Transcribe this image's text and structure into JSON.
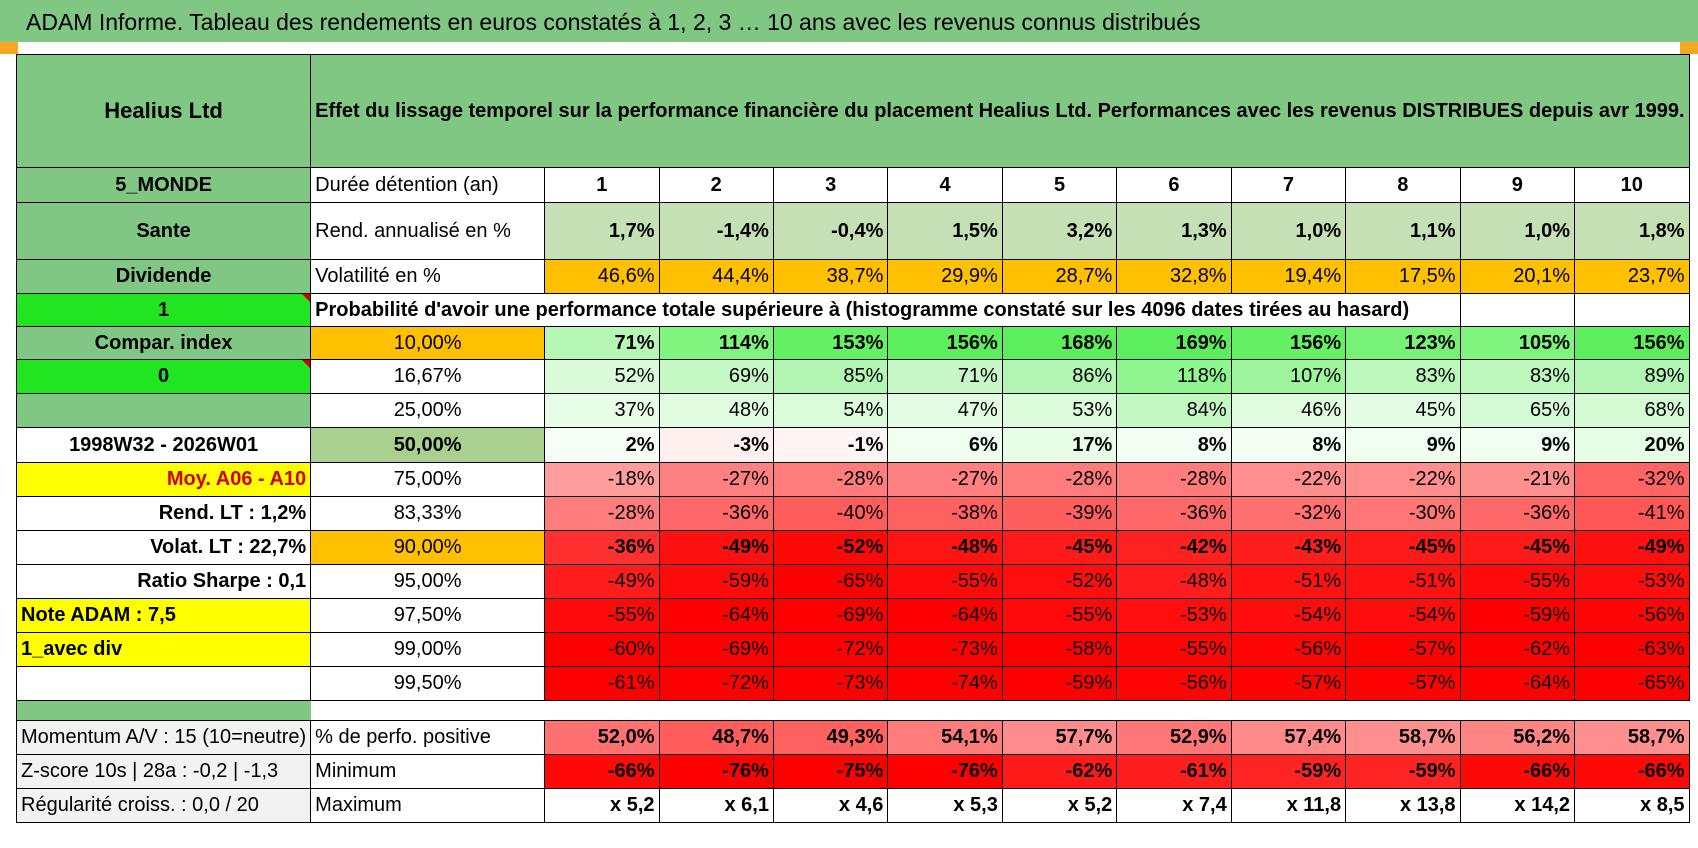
{
  "header": {
    "title": "ADAM Informe. Tableau des rendements en euros constatés à 1, 2, 3 … 10 ans avec les revenus connus distribués"
  },
  "left": {
    "fund_name": "Healius Ltd",
    "zone": "5_MONDE",
    "sector": "Sante",
    "type": "Dividende",
    "flag1": "1",
    "compar": "Compar. index",
    "flag2": "0",
    "period": "1998W32 - 2026W01",
    "moy": "Moy. A06 - A10",
    "rend_lt": "Rend. LT :    1,2%",
    "volat_lt": "Volat. LT :    22,7%",
    "sharpe": "Ratio Sharpe :    0,1",
    "note": "Note ADAM : 7,5",
    "avec_div": "1_avec div",
    "momentum": "Momentum A/V : 15 (10=neutre)",
    "zscore": "Z-score 10s | 28a : -0,2 | -1,3",
    "regularite": "Régularité croiss. : 0,0 / 20"
  },
  "main": {
    "subtitle": "Effet du lissage temporel sur la performance financière du placement Healius Ltd. Performances avec les revenus DISTRIBUES depuis avr 1999.",
    "duree_label": "Durée détention (an)",
    "years": [
      "1",
      "2",
      "3",
      "4",
      "5",
      "6",
      "7",
      "8",
      "9",
      "10"
    ],
    "rend_label": "Rend. annualisé en %",
    "rend": [
      "1,7%",
      "-1,4%",
      "-0,4%",
      "1,5%",
      "3,2%",
      "1,3%",
      "1,0%",
      "1,1%",
      "1,0%",
      "1,8%"
    ],
    "vol_label": "Volatilité en %",
    "vol": [
      "46,6%",
      "44,4%",
      "38,7%",
      "29,9%",
      "28,7%",
      "32,8%",
      "19,4%",
      "17,5%",
      "20,1%",
      "23,7%"
    ],
    "prob_label": "Probabilité d'avoir une performance totale supérieure à (histogramme constaté sur les 4096 dates tirées au hasard)",
    "quantiles": [
      {
        "pct": "10,00%",
        "values": [
          "71%",
          "114%",
          "153%",
          "156%",
          "168%",
          "169%",
          "156%",
          "123%",
          "105%",
          "156%"
        ]
      },
      {
        "pct": "16,67%",
        "values": [
          "52%",
          "69%",
          "85%",
          "71%",
          "86%",
          "118%",
          "107%",
          "83%",
          "83%",
          "89%"
        ]
      },
      {
        "pct": "25,00%",
        "values": [
          "37%",
          "48%",
          "54%",
          "47%",
          "53%",
          "84%",
          "46%",
          "45%",
          "65%",
          "68%"
        ]
      },
      {
        "pct": "50,00%",
        "values": [
          "2%",
          "-3%",
          "-1%",
          "6%",
          "17%",
          "8%",
          "8%",
          "9%",
          "9%",
          "20%"
        ]
      },
      {
        "pct": "75,00%",
        "values": [
          "-18%",
          "-27%",
          "-28%",
          "-27%",
          "-28%",
          "-28%",
          "-22%",
          "-22%",
          "-21%",
          "-32%"
        ]
      },
      {
        "pct": "83,33%",
        "values": [
          "-28%",
          "-36%",
          "-40%",
          "-38%",
          "-39%",
          "-36%",
          "-32%",
          "-30%",
          "-36%",
          "-41%"
        ]
      },
      {
        "pct": "90,00%",
        "values": [
          "-36%",
          "-49%",
          "-52%",
          "-48%",
          "-45%",
          "-42%",
          "-43%",
          "-45%",
          "-45%",
          "-49%"
        ]
      },
      {
        "pct": "95,00%",
        "values": [
          "-49%",
          "-59%",
          "-65%",
          "-55%",
          "-52%",
          "-48%",
          "-51%",
          "-51%",
          "-55%",
          "-53%"
        ]
      },
      {
        "pct": "97,50%",
        "values": [
          "-55%",
          "-64%",
          "-69%",
          "-64%",
          "-55%",
          "-53%",
          "-54%",
          "-54%",
          "-59%",
          "-56%"
        ]
      },
      {
        "pct": "99,00%",
        "values": [
          "-60%",
          "-69%",
          "-72%",
          "-73%",
          "-58%",
          "-55%",
          "-56%",
          "-57%",
          "-62%",
          "-63%"
        ]
      },
      {
        "pct": "99,50%",
        "values": [
          "-61%",
          "-72%",
          "-73%",
          "-74%",
          "-59%",
          "-56%",
          "-57%",
          "-57%",
          "-64%",
          "-65%"
        ]
      }
    ],
    "pos_label": "% de perfo. positive",
    "pos": [
      "52,0%",
      "48,7%",
      "49,3%",
      "54,1%",
      "57,7%",
      "52,9%",
      "57,4%",
      "58,7%",
      "56,2%",
      "58,7%"
    ],
    "min_label": "Minimum",
    "min": [
      "-66%",
      "-76%",
      "-75%",
      "-76%",
      "-62%",
      "-61%",
      "-59%",
      "-59%",
      "-66%",
      "-66%"
    ],
    "max_label": "Maximum",
    "max": [
      "x 5,2",
      "x 6,1",
      "x 4,6",
      "x 5,3",
      "x 5,2",
      "x 7,4",
      "x 11,8",
      "x 13,8",
      "x 14,2",
      "x 8,5"
    ]
  },
  "colors": {
    "header_green": "#81c784",
    "bright_green": "#21e521",
    "yellow": "#ffff00",
    "orange": "#ffc000",
    "rend_bg": "#c5e0b4",
    "quantile_rows": [
      [
        "#b6f7b6",
        "#7ff57f",
        "#66f066",
        "#5cee5c",
        "#5cee5c",
        "#5cee5c",
        "#66f066",
        "#77f277",
        "#7ff57f",
        "#5cee5c"
      ],
      [
        "#dafbda",
        "#c5f8c5",
        "#b3f6b3",
        "#c8f8c8",
        "#b3f6b3",
        "#8ff58f",
        "#9ef59e",
        "#bcf7bc",
        "#bcf7bc",
        "#b3f6b3"
      ],
      [
        "#e8fde8",
        "#e1fce1",
        "#dbfbdb",
        "#e3fce3",
        "#dcfcdc",
        "#c2f8c2",
        "#e1fce1",
        "#e3fce3",
        "#d5fad5",
        "#d3fad3"
      ],
      [
        "#f5fff5",
        "#fff0f0",
        "#fff5f5",
        "#f1fff1",
        "#e8fde8",
        "#f3fff3",
        "#f3fff3",
        "#f1fff1",
        "#f1fff1",
        "#e6fde6"
      ],
      [
        "#ff9c9c",
        "#ff8080",
        "#ff7c7c",
        "#ff8080",
        "#ff7c7c",
        "#ff7c7c",
        "#ff8e8e",
        "#ff8e8e",
        "#ff9090",
        "#ff6464"
      ],
      [
        "#ff7c7c",
        "#ff6868",
        "#ff5c5c",
        "#ff6060",
        "#ff5e5e",
        "#ff6868",
        "#ff7070",
        "#ff7676",
        "#ff6868",
        "#ff5656"
      ],
      [
        "#ff3030",
        "#ff1010",
        "#ff0808",
        "#ff1414",
        "#ff1a1a",
        "#ff2020",
        "#ff1e1e",
        "#ff1a1a",
        "#ff1a1a",
        "#ff1010"
      ],
      [
        "#ff1c1c",
        "#ff0a0a",
        "#ff0000",
        "#ff0a0a",
        "#ff0e0e",
        "#ff1c1c",
        "#ff1212",
        "#ff1212",
        "#ff0a0a",
        "#ff0c0c"
      ],
      [
        "#ff0a0a",
        "#ff0000",
        "#ff0000",
        "#ff0000",
        "#ff0a0a",
        "#ff0e0e",
        "#ff0c0c",
        "#ff0c0c",
        "#ff0000",
        "#ff0606"
      ],
      [
        "#ff0000",
        "#ff0000",
        "#ff0000",
        "#ff0000",
        "#ff0000",
        "#ff0606",
        "#ff0404",
        "#ff0202",
        "#ff0000",
        "#ff0000"
      ],
      [
        "#ff0000",
        "#ff0000",
        "#ff0000",
        "#ff0000",
        "#ff0000",
        "#ff0404",
        "#ff0202",
        "#ff0202",
        "#ff0000",
        "#ff0000"
      ]
    ],
    "pos_row": [
      "#ff7070",
      "#ff5c5c",
      "#ff6060",
      "#ff7c7c",
      "#ff8c8c",
      "#ff7676",
      "#ff8a8a",
      "#ff8e8e",
      "#ff8484",
      "#ff8e8e"
    ],
    "min_row": [
      "#ff0808",
      "#ff0000",
      "#ff0000",
      "#ff0000",
      "#ff1a1a",
      "#ff1e1e",
      "#ff2424",
      "#ff2424",
      "#ff0808",
      "#ff0808"
    ]
  }
}
